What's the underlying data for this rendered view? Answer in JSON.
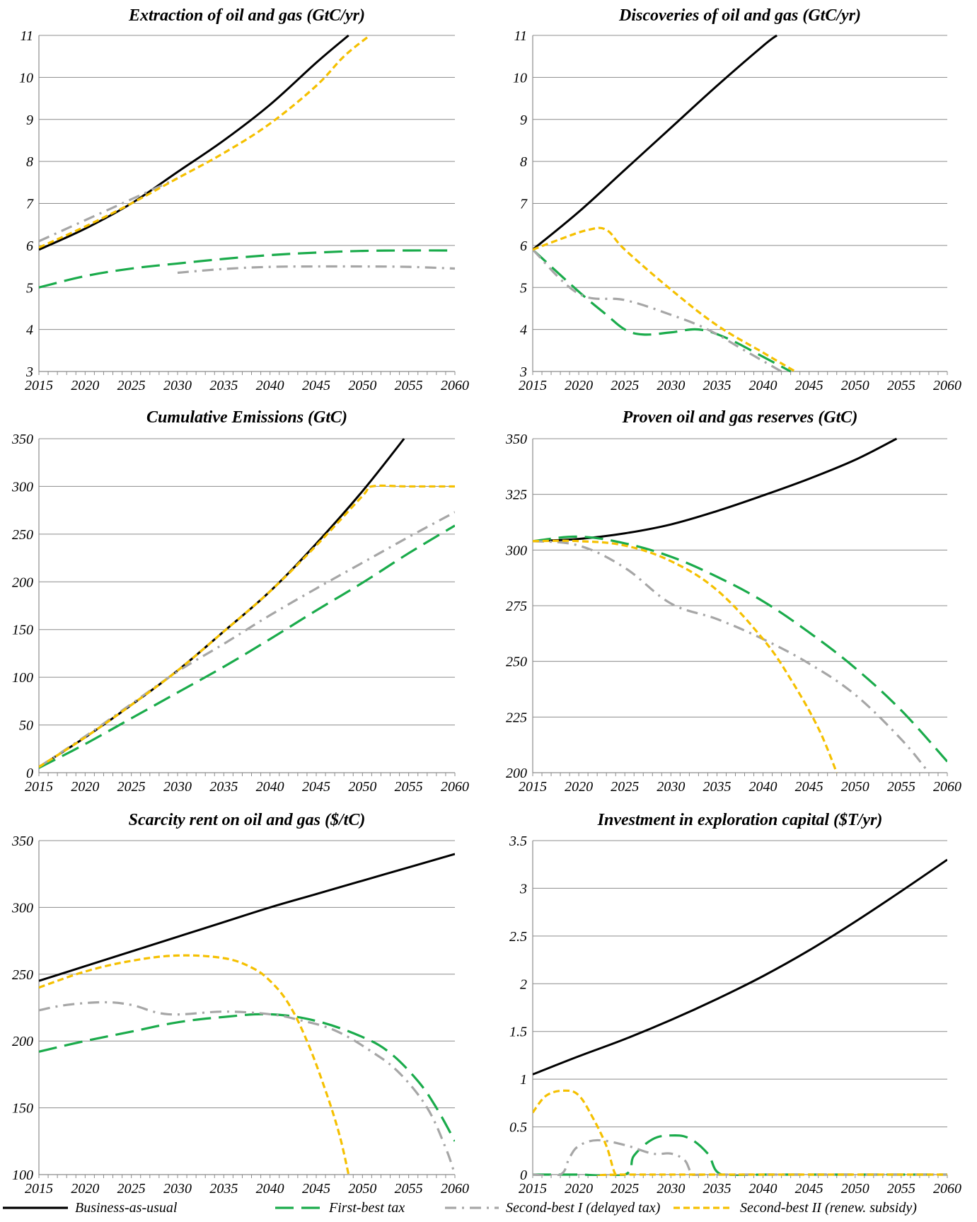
{
  "colors": {
    "bau": "#000000",
    "first_best": "#1aab4b",
    "second_best_1": "#a6a6a6",
    "second_best_2": "#f5c000"
  },
  "legend": [
    {
      "key": "bau",
      "label": "Business-as-usual",
      "style": "solid"
    },
    {
      "key": "first_best",
      "label": "First-best tax",
      "style": "longdash"
    },
    {
      "key": "second_best_1",
      "label": "Second-best I (delayed tax)",
      "style": "dashdot"
    },
    {
      "key": "second_best_2",
      "label": "Second-best II (renew. subsidy)",
      "style": "shortdash"
    }
  ],
  "chart_data": [
    {
      "type": "line",
      "title": "Extraction of oil and gas (GtC/yr)",
      "xlim": [
        2015,
        2060
      ],
      "ylim": [
        3,
        11
      ],
      "x_ticks": [
        2015,
        2020,
        2025,
        2030,
        2035,
        2040,
        2045,
        2050,
        2055,
        2060
      ],
      "y_ticks": [
        "3",
        "4",
        "5",
        "6",
        "7",
        "8",
        "9",
        "10",
        "11"
      ],
      "series": [
        {
          "key": "bau",
          "x": [
            2015,
            2020,
            2025,
            2030,
            2035,
            2040,
            2045,
            2048.5
          ],
          "y": [
            5.9,
            6.4,
            7.0,
            7.75,
            8.5,
            9.35,
            10.35,
            11
          ]
        },
        {
          "key": "first_best",
          "x": [
            2015,
            2020,
            2025,
            2030,
            2035,
            2040,
            2045,
            2050,
            2055,
            2060
          ],
          "y": [
            5.0,
            5.27,
            5.45,
            5.57,
            5.68,
            5.77,
            5.83,
            5.87,
            5.88,
            5.88
          ]
        },
        {
          "key": "second_best_1",
          "x": [
            2015,
            2020,
            2025,
            2030
          ],
          "y": [
            6.1,
            6.6,
            7.1,
            7.6
          ]
        },
        {
          "key": "second_best_1",
          "x": [
            2030,
            2035,
            2040,
            2045,
            2050,
            2055,
            2060
          ],
          "y": [
            5.35,
            5.44,
            5.49,
            5.5,
            5.5,
            5.49,
            5.45
          ]
        },
        {
          "key": "second_best_2",
          "x": [
            2015,
            2020,
            2025,
            2030,
            2035,
            2040,
            2045,
            2048,
            2050.8
          ],
          "y": [
            5.95,
            6.45,
            7.0,
            7.6,
            8.2,
            8.9,
            9.8,
            10.5,
            11
          ]
        }
      ]
    },
    {
      "type": "line",
      "title": "Discoveries of oil and gas (GtC/yr)",
      "xlim": [
        2015,
        2060
      ],
      "ylim": [
        3,
        11
      ],
      "x_ticks": [
        2015,
        2020,
        2025,
        2030,
        2035,
        2040,
        2045,
        2050,
        2055,
        2060
      ],
      "y_ticks": [
        "3",
        "4",
        "5",
        "6",
        "7",
        "8",
        "9",
        "10",
        "11"
      ],
      "series": [
        {
          "key": "bau",
          "x": [
            2015,
            2020,
            2025,
            2030,
            2035,
            2040,
            2041.5
          ],
          "y": [
            5.9,
            6.8,
            7.8,
            8.8,
            9.8,
            10.75,
            11
          ]
        },
        {
          "key": "first_best",
          "x": [
            2015,
            2020,
            2023,
            2025,
            2027,
            2030,
            2033,
            2036,
            2040,
            2043
          ],
          "y": [
            5.9,
            4.9,
            4.35,
            4.0,
            3.88,
            3.93,
            4.0,
            3.8,
            3.35,
            3.0
          ]
        },
        {
          "key": "second_best_1",
          "x": [
            2015,
            2020,
            2025,
            2030,
            2034,
            2038,
            2042
          ],
          "y": [
            5.9,
            4.85,
            4.7,
            4.35,
            4.0,
            3.5,
            3.0
          ]
        },
        {
          "key": "second_best_2",
          "x": [
            2015,
            2018,
            2021,
            2023,
            2025,
            2030,
            2035,
            2040,
            2043.5
          ],
          "y": [
            5.9,
            6.15,
            6.37,
            6.37,
            5.9,
            4.95,
            4.1,
            3.45,
            3.0
          ]
        }
      ]
    },
    {
      "type": "line",
      "title": "Cumulative Emissions (GtC)",
      "xlim": [
        2015,
        2060
      ],
      "ylim": [
        0,
        350
      ],
      "x_ticks": [
        2015,
        2020,
        2025,
        2030,
        2035,
        2040,
        2045,
        2050,
        2055,
        2060
      ],
      "y_ticks": [
        "0",
        "50",
        "100",
        "150",
        "200",
        "250",
        "300",
        "350"
      ],
      "series": [
        {
          "key": "bau",
          "x": [
            2015,
            2020,
            2025,
            2030,
            2035,
            2040,
            2045,
            2050,
            2054.5
          ],
          "y": [
            6,
            37,
            71,
            107,
            148,
            190,
            240,
            295,
            350
          ]
        },
        {
          "key": "first_best",
          "x": [
            2015,
            2020,
            2025,
            2030,
            2035,
            2040,
            2045,
            2050,
            2055,
            2060
          ],
          "y": [
            5,
            30,
            57,
            84,
            111,
            140,
            170,
            199,
            230,
            259
          ]
        },
        {
          "key": "second_best_1",
          "x": [
            2015,
            2020,
            2025,
            2030,
            2035,
            2040,
            2045,
            2050,
            2055,
            2060
          ],
          "y": [
            6,
            38,
            72,
            106,
            135,
            165,
            193,
            220,
            247,
            273
          ]
        },
        {
          "key": "second_best_2",
          "x": [
            2015,
            2020,
            2025,
            2030,
            2035,
            2040,
            2045,
            2050,
            2051,
            2055,
            2060
          ],
          "y": [
            6,
            37,
            71,
            107,
            148,
            190,
            238,
            290,
            300,
            300,
            300
          ]
        }
      ]
    },
    {
      "type": "line",
      "title": "Proven oil and gas reserves (GtC)",
      "xlim": [
        2015,
        2060
      ],
      "ylim": [
        200,
        350
      ],
      "x_ticks": [
        2015,
        2020,
        2025,
        2030,
        2035,
        2040,
        2045,
        2050,
        2055,
        2060
      ],
      "y_ticks": [
        "200",
        "225",
        "250",
        "275",
        "300",
        "325",
        "350"
      ],
      "series": [
        {
          "key": "bau",
          "x": [
            2015,
            2020,
            2025,
            2030,
            2035,
            2040,
            2045,
            2050,
            2054.5
          ],
          "y": [
            304,
            305,
            307.5,
            311.5,
            317.5,
            324.5,
            332,
            340.5,
            350
          ]
        },
        {
          "key": "first_best",
          "x": [
            2015,
            2020,
            2025,
            2030,
            2035,
            2040,
            2045,
            2050,
            2055,
            2060
          ],
          "y": [
            304,
            306,
            303,
            297,
            288,
            277,
            263,
            247,
            228,
            205
          ]
        },
        {
          "key": "second_best_1",
          "x": [
            2015,
            2020,
            2025,
            2030,
            2035,
            2040,
            2045,
            2050,
            2055,
            2058
          ],
          "y": [
            304,
            302,
            292,
            276,
            269,
            260,
            249,
            235,
            215,
            200
          ]
        },
        {
          "key": "second_best_2",
          "x": [
            2015,
            2020,
            2025,
            2030,
            2035,
            2040,
            2043,
            2046,
            2048
          ],
          "y": [
            304,
            304,
            302,
            295,
            282,
            260,
            242,
            220,
            200
          ]
        }
      ]
    },
    {
      "type": "line",
      "title": "Scarcity rent on oil and gas ($/tC)",
      "xlim": [
        2015,
        2060
      ],
      "ylim": [
        100,
        350
      ],
      "x_ticks": [
        2015,
        2020,
        2025,
        2030,
        2035,
        2040,
        2045,
        2050,
        2055,
        2060
      ],
      "y_ticks": [
        "100",
        "150",
        "200",
        "250",
        "300",
        "350"
      ],
      "series": [
        {
          "key": "bau",
          "x": [
            2015,
            2020,
            2025,
            2030,
            2035,
            2040,
            2045,
            2050,
            2055,
            2060
          ],
          "y": [
            245,
            256,
            267,
            278,
            289,
            300,
            310,
            320,
            330,
            340
          ]
        },
        {
          "key": "first_best",
          "x": [
            2015,
            2020,
            2025,
            2030,
            2035,
            2040,
            2045,
            2050,
            2053,
            2056,
            2058,
            2060
          ],
          "y": [
            192,
            200,
            207,
            214,
            218,
            220,
            215,
            203,
            191,
            170,
            150,
            125
          ]
        },
        {
          "key": "second_best_1",
          "x": [
            2015,
            2018,
            2022,
            2025,
            2029,
            2035,
            2040,
            2043,
            2047,
            2051,
            2054,
            2057,
            2059,
            2060
          ],
          "y": [
            223,
            227,
            229,
            227,
            220,
            222,
            220,
            216,
            208,
            192,
            176,
            150,
            120,
            100
          ]
        },
        {
          "key": "second_best_2",
          "x": [
            2015,
            2020,
            2025,
            2030,
            2035,
            2038,
            2040,
            2042,
            2044,
            2046,
            2047.5,
            2048.5
          ],
          "y": [
            240,
            252,
            260,
            264,
            262,
            255,
            245,
            228,
            200,
            163,
            130,
            100
          ]
        }
      ]
    },
    {
      "type": "line",
      "title": "Investment in exploration capital ($T/yr)",
      "xlim": [
        2015,
        2060
      ],
      "ylim": [
        0,
        3.5
      ],
      "x_ticks": [
        2015,
        2020,
        2025,
        2030,
        2035,
        2040,
        2045,
        2050,
        2055,
        2060
      ],
      "y_ticks": [
        "0",
        "0.5",
        "1",
        "1.5",
        "2",
        "2.5",
        "3",
        "3.5"
      ],
      "series": [
        {
          "key": "bau",
          "x": [
            2015,
            2020,
            2025,
            2030,
            2035,
            2040,
            2045,
            2050,
            2055,
            2060
          ],
          "y": [
            1.05,
            1.24,
            1.42,
            1.62,
            1.84,
            2.08,
            2.35,
            2.65,
            2.97,
            3.3
          ]
        },
        {
          "key": "first_best",
          "x": [
            2015,
            2020,
            2025,
            2026,
            2028,
            2030,
            2032,
            2034,
            2035.5,
            2040,
            2050,
            2060
          ],
          "y": [
            0,
            0,
            0,
            0.2,
            0.37,
            0.41,
            0.38,
            0.22,
            0,
            0,
            0,
            0
          ]
        },
        {
          "key": "second_best_1",
          "x": [
            2015,
            2018,
            2019,
            2020,
            2022,
            2025,
            2028,
            2030,
            2031.5,
            2032.5,
            2035,
            2060
          ],
          "y": [
            0,
            0,
            0.18,
            0.3,
            0.36,
            0.31,
            0.22,
            0.22,
            0.15,
            0,
            0,
            0
          ]
        },
        {
          "key": "second_best_2",
          "x": [
            2015,
            2016.5,
            2018.5,
            2020,
            2021.5,
            2023,
            2024,
            2025,
            2060
          ],
          "y": [
            0.65,
            0.83,
            0.88,
            0.83,
            0.6,
            0.3,
            0,
            0,
            0
          ]
        }
      ]
    }
  ]
}
